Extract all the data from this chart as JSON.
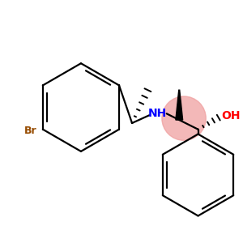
{
  "bg_color": "#ffffff",
  "bond_color": "#000000",
  "br_color": "#964B00",
  "nh_color": "#0000ff",
  "oh_color": "#ff0000",
  "highlight_color": "#f0a0a0",
  "highlight_alpha": 0.75,
  "figsize": [
    3.0,
    3.0
  ],
  "dpi": 100,
  "br_label": "Br",
  "nh_label": "NH",
  "oh_label": "OH",
  "lw": 1.6,
  "lw_bold": 4.0
}
